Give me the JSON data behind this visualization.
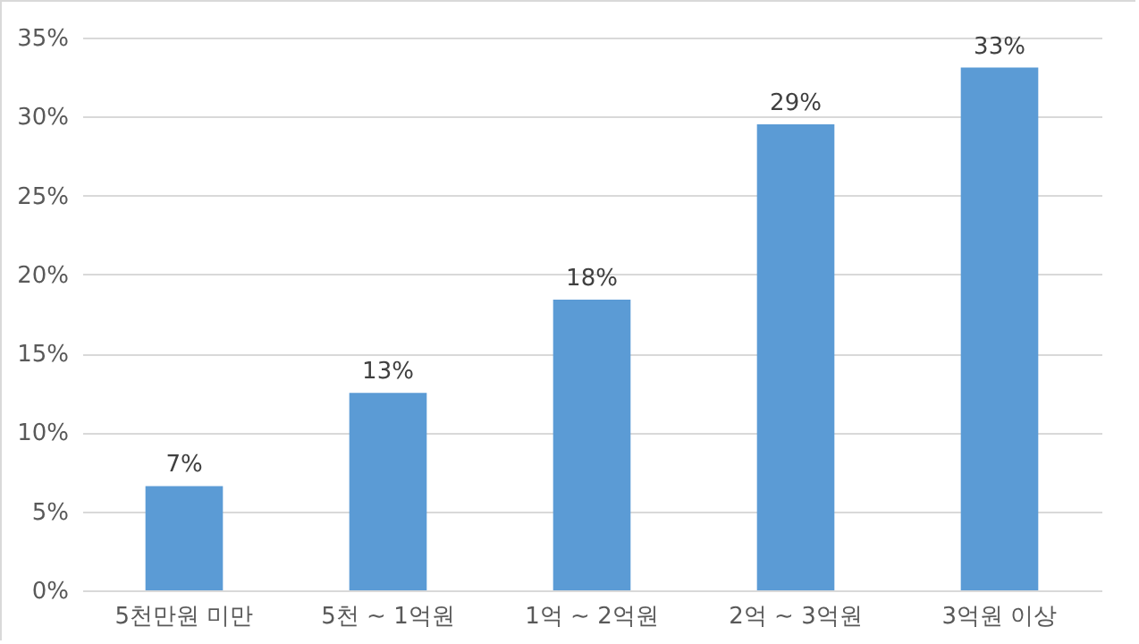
{
  "chart_data": {
    "type": "bar",
    "categories": [
      "5천만원 미만",
      "5천 ~ 1억원",
      "1억 ~ 2억원",
      "2억 ~ 3억원",
      "3억원 이상"
    ],
    "values": [
      6.6,
      12.5,
      18.4,
      29.5,
      33.1
    ],
    "value_labels": [
      "7%",
      "13%",
      "18%",
      "29%",
      "33%"
    ],
    "color": "#5b9bd5",
    "ylim": [
      0,
      35
    ],
    "yticks": [
      {
        "value": 0,
        "label": "0%"
      },
      {
        "value": 5,
        "label": "5%"
      },
      {
        "value": 10,
        "label": "10%"
      },
      {
        "value": 15,
        "label": "15%"
      },
      {
        "value": 20,
        "label": "20%"
      },
      {
        "value": 25,
        "label": "25%"
      },
      {
        "value": 30,
        "label": "30%"
      },
      {
        "value": 35,
        "label": "35%"
      }
    ],
    "grid": "y"
  }
}
